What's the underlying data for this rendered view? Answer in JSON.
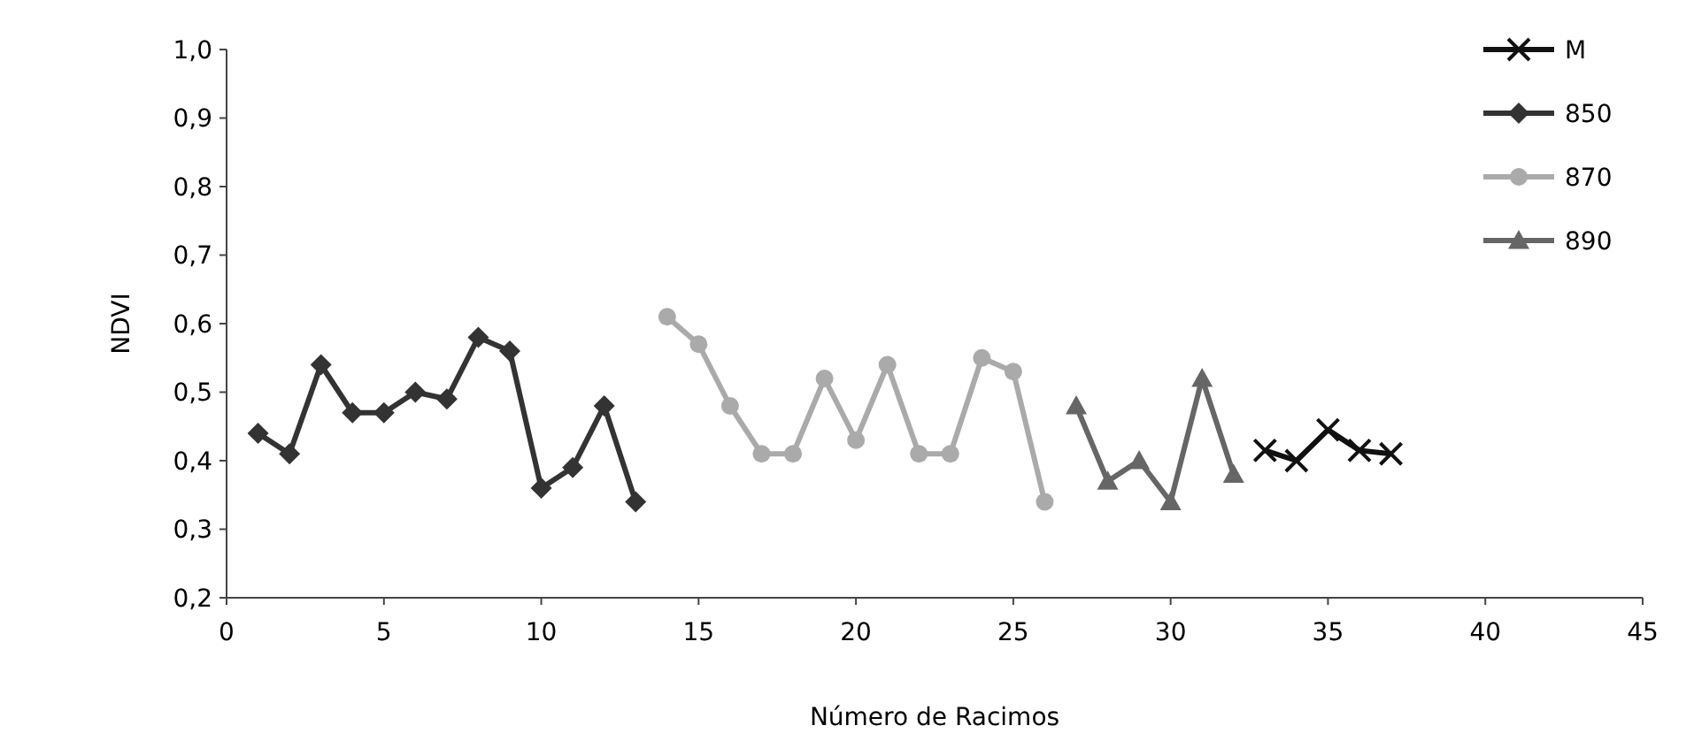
{
  "chart_data": {
    "type": "line",
    "xlabel": "Número de Racimos",
    "ylabel": "NDVI",
    "xlim": [
      0,
      45
    ],
    "xticks": [
      0,
      5,
      10,
      15,
      20,
      25,
      30,
      35,
      40,
      45
    ],
    "ylim": [
      0.2,
      1.0
    ],
    "yticks": [
      {
        "value": 0.2,
        "label": "0,2"
      },
      {
        "value": 0.3,
        "label": "0,3"
      },
      {
        "value": 0.4,
        "label": "0,4"
      },
      {
        "value": 0.5,
        "label": "0,5"
      },
      {
        "value": 0.6,
        "label": "0,6"
      },
      {
        "value": 0.7,
        "label": "0,7"
      },
      {
        "value": 0.8,
        "label": "0,8"
      },
      {
        "value": 0.9,
        "label": "0,9"
      },
      {
        "value": 1.0,
        "label": "1,0"
      }
    ],
    "grid": false,
    "legend": "top right",
    "line_style": "solid",
    "series": [
      {
        "name": "M",
        "color": "#111111",
        "marker": "cross",
        "x": [
          33,
          34,
          35,
          36,
          37
        ],
        "values": [
          0.415,
          0.4,
          0.445,
          0.415,
          0.41
        ]
      },
      {
        "name": "850",
        "color": "#333333",
        "marker": "diamond",
        "x": [
          1,
          2,
          3,
          4,
          5,
          6,
          7,
          8,
          9,
          10,
          11,
          12,
          13
        ],
        "values": [
          0.44,
          0.41,
          0.54,
          0.47,
          0.47,
          0.5,
          0.49,
          0.58,
          0.56,
          0.36,
          0.39,
          0.48,
          0.34
        ]
      },
      {
        "name": "870",
        "color": "#aaaaaa",
        "marker": "circle",
        "x": [
          14,
          15,
          16,
          17,
          18,
          19,
          20,
          21,
          22,
          23,
          24,
          25,
          26
        ],
        "values": [
          0.61,
          0.57,
          0.48,
          0.41,
          0.41,
          0.52,
          0.43,
          0.54,
          0.41,
          0.41,
          0.55,
          0.53,
          0.34
        ]
      },
      {
        "name": "890",
        "color": "#666666",
        "marker": "triangle",
        "x": [
          27,
          28,
          29,
          30,
          31,
          32
        ],
        "values": [
          0.48,
          0.37,
          0.4,
          0.34,
          0.52,
          0.38
        ]
      }
    ]
  }
}
